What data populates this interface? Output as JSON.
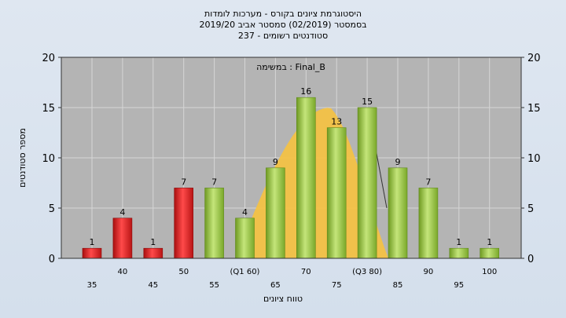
{
  "chart_data": {
    "type": "bar",
    "title_lines": [
      "היסטוגרמת ציונים בקורס - מערכות לומדות",
      "בסמסטר  (02/2019)  סמסטר אביב 2019/20",
      "237 - סטודנטים רשומים"
    ],
    "annotation": "במשימה : Final_B",
    "xlabel": "טווח ציונים",
    "ylabel": "מספר סטודנטים",
    "ylim": [
      0,
      20
    ],
    "yticks": [
      0,
      5,
      10,
      15,
      20
    ],
    "categories": [
      "35",
      "40",
      "45",
      "50",
      "55",
      "(Q1 60)",
      "65",
      "70",
      "75",
      "(Q3 80)",
      "85",
      "90",
      "95",
      "100"
    ],
    "values": [
      1,
      4,
      1,
      7,
      7,
      4,
      9,
      16,
      13,
      15,
      9,
      7,
      1,
      1
    ],
    "value_labels": [
      "1",
      "4",
      "1",
      "7",
      "7",
      "4",
      "9",
      "16",
      "13",
      "15",
      "9",
      "7",
      "1",
      "1"
    ],
    "bar_colors": [
      "#e02020",
      "#e02020",
      "#e02020",
      "#e02020",
      "#8fbf3a",
      "#8fbf3a",
      "#8fbf3a",
      "#8fbf3a",
      "#8fbf3a",
      "#8fbf3a",
      "#8fbf3a",
      "#8fbf3a",
      "#8fbf3a",
      "#8fbf3a"
    ],
    "overlay": {
      "type": "area",
      "color": "#f5c242",
      "x_start": "(Q1 60)",
      "x_end": "85",
      "peak": 15
    },
    "plot_background": "#b4b4b4",
    "grid": true
  }
}
